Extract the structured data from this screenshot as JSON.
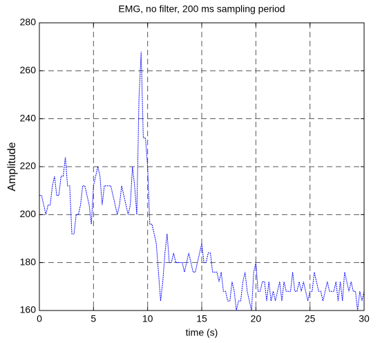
{
  "chart_data": {
    "type": "line",
    "title": "EMG, no filter, 200 ms sampling period",
    "x_label": "time (s)",
    "y_label": "Amplitude",
    "xlim": [
      0,
      30
    ],
    "xticks": [
      0,
      5,
      10,
      15,
      20,
      25,
      30
    ],
    "ylim": [
      160,
      280
    ],
    "yticks": [
      160,
      180,
      200,
      220,
      240,
      260,
      280
    ],
    "grid": true,
    "x": [
      0,
      0.2,
      0.4,
      0.6,
      0.8,
      1,
      1.2,
      1.4,
      1.6,
      1.8,
      2,
      2.2,
      2.4,
      2.6,
      2.8,
      3,
      3.2,
      3.4,
      3.6,
      3.8,
      4,
      4.2,
      4.4,
      4.6,
      4.8,
      5,
      5.2,
      5.4,
      5.6,
      5.8,
      6,
      6.2,
      6.4,
      6.6,
      6.8,
      7,
      7.2,
      7.4,
      7.6,
      7.8,
      8,
      8.2,
      8.4,
      8.6,
      8.8,
      9,
      9.2,
      9.4,
      9.6,
      9.8,
      10,
      10.2,
      10.4,
      10.6,
      10.8,
      11,
      11.2,
      11.4,
      11.6,
      11.8,
      12,
      12.2,
      12.4,
      12.6,
      12.8,
      13,
      13.2,
      13.4,
      13.6,
      13.8,
      14,
      14.2,
      14.4,
      14.6,
      14.8,
      15,
      15.2,
      15.4,
      15.6,
      15.8,
      16,
      16.2,
      16.4,
      16.6,
      16.8,
      17,
      17.2,
      17.4,
      17.6,
      17.8,
      18,
      18.2,
      18.4,
      18.6,
      18.8,
      19,
      19.2,
      19.4,
      19.6,
      19.8,
      20,
      20.2,
      20.4,
      20.6,
      20.8,
      21,
      21.2,
      21.4,
      21.6,
      21.8,
      22,
      22.2,
      22.4,
      22.6,
      22.8,
      23,
      23.2,
      23.4,
      23.6,
      23.8,
      24,
      24.2,
      24.4,
      24.6,
      24.8,
      25,
      25.2,
      25.4,
      25.6,
      25.8,
      26,
      26.2,
      26.4,
      26.6,
      26.8,
      27,
      27.2,
      27.4,
      27.6,
      27.8,
      28,
      28.2,
      28.4,
      28.6,
      28.8,
      29,
      29.2,
      29.4,
      29.6,
      29.8,
      30
    ],
    "series": [
      {
        "color": "#0000ff",
        "values": [
          208,
          208,
          204,
          200,
          204,
          204,
          212,
          216,
          208,
          208,
          216,
          216,
          224,
          212,
          212,
          192,
          192,
          200,
          200,
          204,
          212,
          212,
          208,
          204,
          196,
          212,
          216,
          220,
          216,
          204,
          212,
          212,
          212,
          212,
          208,
          204,
          200,
          204,
          212,
          208,
          204,
          200,
          204,
          220,
          212,
          200,
          248,
          268,
          232,
          232,
          220,
          196,
          196,
          192,
          188,
          176,
          164,
          172,
          184,
          192,
          180,
          180,
          184,
          180,
          180,
          180,
          180,
          176,
          180,
          184,
          180,
          176,
          176,
          180,
          184,
          188,
          180,
          180,
          184,
          184,
          176,
          176,
          176,
          172,
          176,
          168,
          168,
          164,
          164,
          172,
          168,
          160,
          164,
          164,
          172,
          176,
          168,
          164,
          160,
          176,
          180,
          168,
          168,
          172,
          172,
          164,
          172,
          164,
          168,
          164,
          168,
          172,
          164,
          172,
          168,
          168,
          168,
          176,
          168,
          168,
          172,
          168,
          172,
          168,
          164,
          168,
          168,
          176,
          172,
          168,
          168,
          164,
          168,
          172,
          168,
          168,
          168,
          172,
          164,
          172,
          164,
          176,
          172,
          168,
          172,
          168,
          168,
          160,
          168,
          164,
          168
        ]
      }
    ]
  }
}
